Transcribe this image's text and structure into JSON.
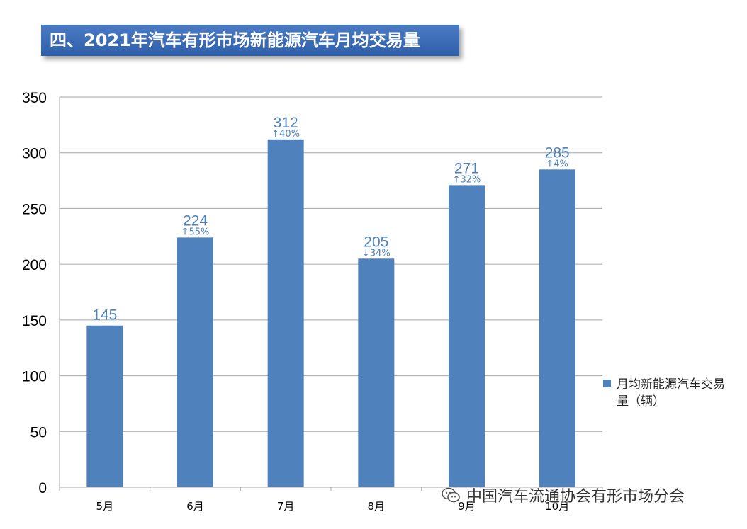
{
  "title": "四、2021年汽车有形市场新能源汽车月均交易量",
  "chart_data": {
    "type": "bar",
    "categories": [
      "5月",
      "6月",
      "7月",
      "8月",
      "9月",
      "10月"
    ],
    "series": [
      {
        "name": "月均新能源汽车交易量（辆）",
        "values": [
          145,
          224,
          312,
          205,
          271,
          285
        ]
      }
    ],
    "annotations": [
      "",
      "↑55%",
      "↑40%",
      "↓34%",
      "↑32%",
      "↑4%"
    ],
    "ylim": [
      0,
      350
    ],
    "yticks": [
      0,
      50,
      100,
      150,
      200,
      250,
      300,
      350
    ],
    "grid": true,
    "legend_position": "right",
    "bar_color": "#4f81bd",
    "label_color": "#4f81bd"
  },
  "legend": {
    "line1": "月均新能源汽车交易",
    "line2": "量（辆）"
  },
  "watermark": "中国汽车流通协会有形市场分会"
}
